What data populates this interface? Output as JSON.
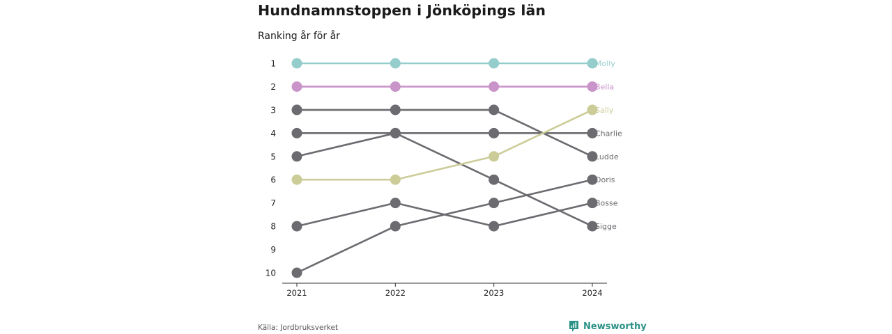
{
  "header": {
    "title": "Hundnamnstoppen i Jönköpings län",
    "subtitle": "Ranking år för år"
  },
  "footer": {
    "source": "Källa: Jordbruksverket",
    "brand": "Newsworthy",
    "brand_icon": "newsworthy-logo-icon"
  },
  "colors": {
    "default": "#6b6b70",
    "axis": "#333333"
  },
  "chart_data": {
    "type": "line",
    "title": "Hundnamnstoppen i Jönköpings län",
    "subtitle": "Ranking år för år",
    "x": [
      "2021",
      "2022",
      "2023",
      "2024"
    ],
    "y_ticks": [
      1,
      2,
      3,
      4,
      5,
      6,
      7,
      8,
      9,
      10
    ],
    "ylim": [
      1,
      10
    ],
    "y_reversed": true,
    "grid": false,
    "legend": "none",
    "series": [
      {
        "name": "Molly",
        "values": [
          1,
          1,
          1,
          1
        ],
        "color": "#95cccc"
      },
      {
        "name": "Bella",
        "values": [
          2,
          2,
          2,
          2
        ],
        "color": "#c994c9"
      },
      {
        "name": "Sally",
        "values": [
          6,
          6,
          5,
          3
        ],
        "color": "#cccc99"
      },
      {
        "name": "Charlie",
        "values": [
          4,
          4,
          4,
          4
        ],
        "color": "#6b6b70"
      },
      {
        "name": "Ludde",
        "values": [
          3,
          3,
          3,
          5
        ],
        "color": "#6b6b70"
      },
      {
        "name": "Doris",
        "values": [
          10,
          8,
          7,
          6
        ],
        "color": "#6b6b70"
      },
      {
        "name": "Bosse",
        "values": [
          8,
          7,
          8,
          7
        ],
        "color": "#6b6b70"
      },
      {
        "name": "Sigge",
        "values": [
          5,
          4,
          6,
          8
        ],
        "color": "#6b6b70"
      }
    ]
  }
}
